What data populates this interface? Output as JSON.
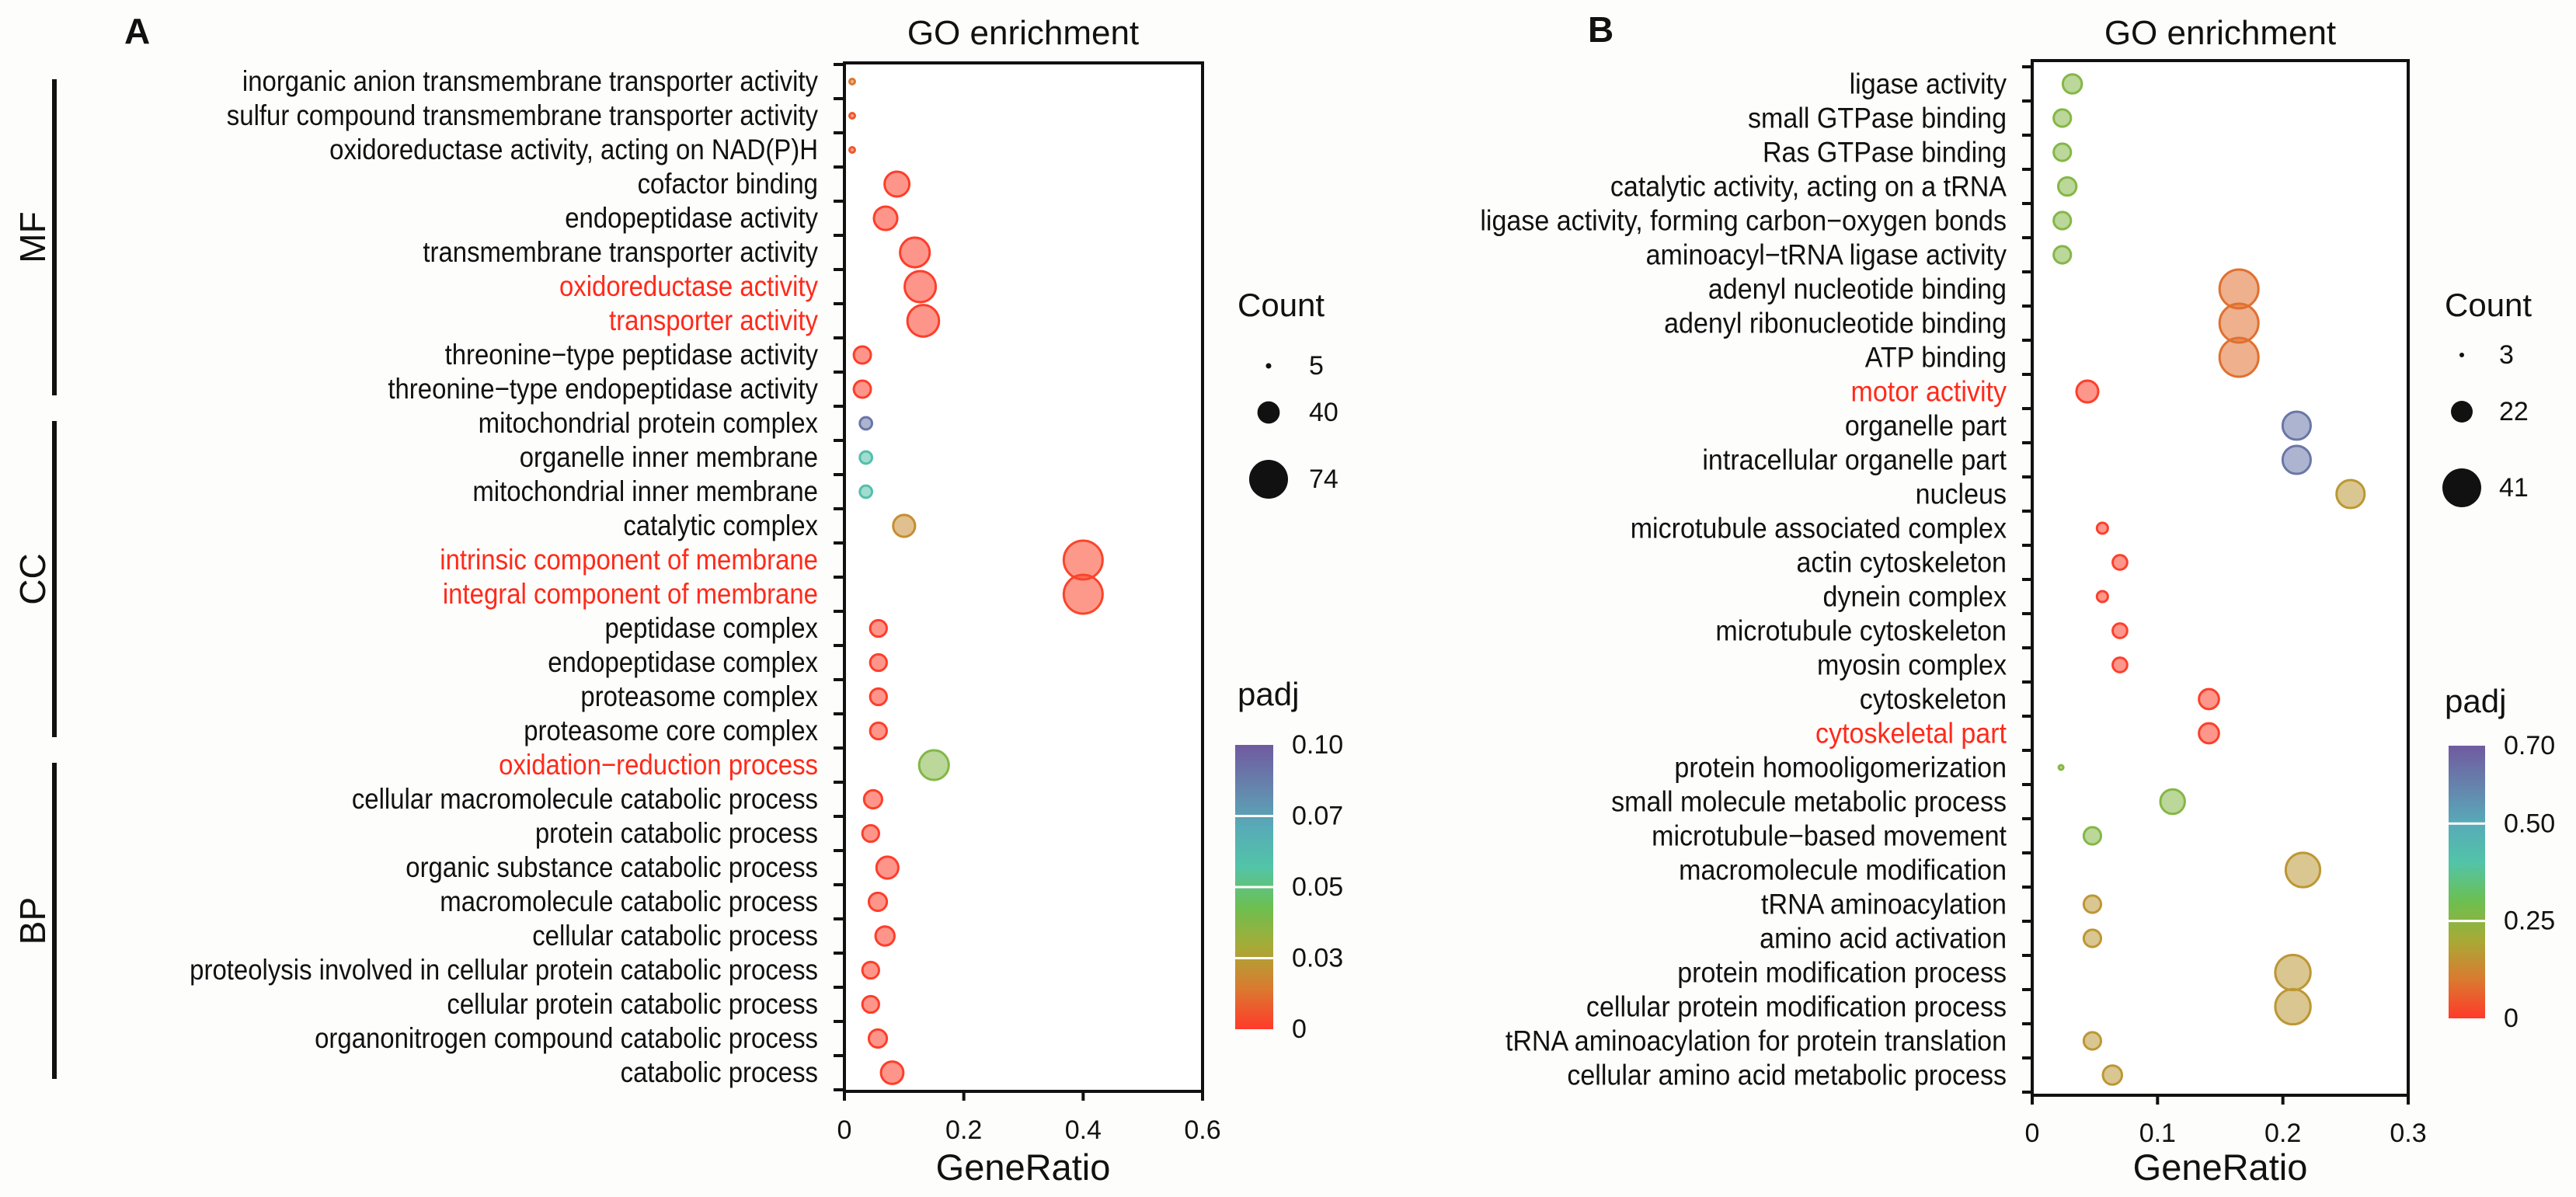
{
  "colormap": [
    "#ff3a2a",
    "#da7a30",
    "#a8aa36",
    "#6cbf50",
    "#52c4a8",
    "#58aab8",
    "#6682ac",
    "#705aa0"
  ],
  "highlight_color": "#ff2a1a",
  "chart_data": [
    {
      "type": "scatter",
      "panel": "A",
      "title": "GO enrichment",
      "xlabel": "GeneRatio",
      "ylabel": "",
      "xlim": [
        0,
        0.6
      ],
      "xticks": [
        "0",
        "0.2",
        "0.4",
        "0.6"
      ],
      "xtick_values": [
        0,
        0.2,
        0.4,
        0.6
      ],
      "grid": false,
      "size_legend": {
        "title": "Count",
        "values": [
          "5",
          "40",
          "74"
        ],
        "numbers": [
          5,
          40,
          74
        ],
        "placement": "right"
      },
      "color_legend": {
        "title": "padj",
        "ticks": [
          "0",
          "0.03",
          "0.05",
          "0.07",
          "0.10"
        ],
        "tick_values": [
          0,
          0.03,
          0.05,
          0.07,
          0.1
        ],
        "placement": "right"
      },
      "groups": [
        {
          "label": "MF",
          "from": 0,
          "to": 9
        },
        {
          "label": "CC",
          "from": 10,
          "to": 19
        },
        {
          "label": "BP",
          "from": 20,
          "to": 29
        }
      ],
      "terms": [
        {
          "term": "inorganic anion transmembrane transporter activity",
          "gene_ratio": 0.013,
          "count": 5,
          "padj": 0.017,
          "highlight": false
        },
        {
          "term": "sulfur compound transmembrane transporter activity",
          "gene_ratio": 0.013,
          "count": 5,
          "padj": 0.008,
          "highlight": false
        },
        {
          "term": "oxidoreductase activity, acting on NAD(P)H",
          "gene_ratio": 0.013,
          "count": 5,
          "padj": 0.008,
          "highlight": false
        },
        {
          "term": "cofactor binding",
          "gene_ratio": 0.088,
          "count": 45,
          "padj": 0.001,
          "highlight": false
        },
        {
          "term": "endopeptidase activity",
          "gene_ratio": 0.069,
          "count": 42,
          "padj": 0.001,
          "highlight": false
        },
        {
          "term": "transmembrane transporter activity",
          "gene_ratio": 0.118,
          "count": 55,
          "padj": 0.001,
          "highlight": false
        },
        {
          "term": "oxidoreductase activity",
          "gene_ratio": 0.127,
          "count": 58,
          "padj": 0.001,
          "highlight": true
        },
        {
          "term": "transporter activity",
          "gene_ratio": 0.132,
          "count": 59,
          "padj": 0.001,
          "highlight": true
        },
        {
          "term": "threonine−type peptidase activity",
          "gene_ratio": 0.03,
          "count": 29,
          "padj": 0.001,
          "highlight": false
        },
        {
          "term": "threonine−type endopeptidase activity",
          "gene_ratio": 0.03,
          "count": 29,
          "padj": 0.001,
          "highlight": false
        },
        {
          "term": "mitochondrial protein complex",
          "gene_ratio": 0.036,
          "count": 19,
          "padj": 0.088,
          "highlight": false
        },
        {
          "term": "organelle inner membrane",
          "gene_ratio": 0.036,
          "count": 19,
          "padj": 0.058,
          "highlight": false
        },
        {
          "term": "mitochondrial inner membrane",
          "gene_ratio": 0.036,
          "count": 19,
          "padj": 0.058,
          "highlight": false
        },
        {
          "term": "catalytic complex",
          "gene_ratio": 0.1,
          "count": 39,
          "padj": 0.024,
          "highlight": false
        },
        {
          "term": "intrinsic component of membrane",
          "gene_ratio": 0.4,
          "count": 74,
          "padj": 0.003,
          "highlight": true
        },
        {
          "term": "integral component of membrane",
          "gene_ratio": 0.4,
          "count": 74,
          "padj": 0.003,
          "highlight": true
        },
        {
          "term": "peptidase complex",
          "gene_ratio": 0.057,
          "count": 28,
          "padj": 0.001,
          "highlight": false
        },
        {
          "term": "endopeptidase complex",
          "gene_ratio": 0.057,
          "count": 28,
          "padj": 0.001,
          "highlight": false
        },
        {
          "term": "proteasome complex",
          "gene_ratio": 0.057,
          "count": 28,
          "padj": 0.001,
          "highlight": false
        },
        {
          "term": "proteasome core complex",
          "gene_ratio": 0.057,
          "count": 28,
          "padj": 0.001,
          "highlight": false
        },
        {
          "term": "oxidation−reduction process",
          "gene_ratio": 0.15,
          "count": 55,
          "padj": 0.04,
          "highlight": true
        },
        {
          "term": "cellular macromolecule catabolic process",
          "gene_ratio": 0.048,
          "count": 31,
          "padj": 0.001,
          "highlight": false
        },
        {
          "term": "protein catabolic process",
          "gene_ratio": 0.044,
          "count": 28,
          "padj": 0.001,
          "highlight": false
        },
        {
          "term": "organic substance catabolic process",
          "gene_ratio": 0.072,
          "count": 39,
          "padj": 0.001,
          "highlight": false
        },
        {
          "term": "macromolecule catabolic process",
          "gene_ratio": 0.056,
          "count": 31,
          "padj": 0.001,
          "highlight": false
        },
        {
          "term": "cellular catabolic process",
          "gene_ratio": 0.068,
          "count": 33,
          "padj": 0.001,
          "highlight": false
        },
        {
          "term": "proteolysis involved in cellular protein catabolic process",
          "gene_ratio": 0.044,
          "count": 28,
          "padj": 0.001,
          "highlight": false
        },
        {
          "term": "cellular protein catabolic process",
          "gene_ratio": 0.044,
          "count": 28,
          "padj": 0.001,
          "highlight": false
        },
        {
          "term": "organonitrogen compound catabolic process",
          "gene_ratio": 0.056,
          "count": 31,
          "padj": 0.001,
          "highlight": false
        },
        {
          "term": "catabolic process",
          "gene_ratio": 0.08,
          "count": 40,
          "padj": 0.001,
          "highlight": false
        }
      ]
    },
    {
      "type": "scatter",
      "panel": "B",
      "title": "GO enrichment",
      "xlabel": "GeneRatio",
      "ylabel": "",
      "xlim": [
        0,
        0.3
      ],
      "xticks": [
        "0",
        "0.1",
        "0.2",
        "0.3"
      ],
      "xtick_values": [
        0,
        0.1,
        0.2,
        0.3
      ],
      "grid": false,
      "size_legend": {
        "title": "Count",
        "values": [
          "3",
          "22",
          "41"
        ],
        "numbers": [
          3,
          22,
          41
        ],
        "placement": "right"
      },
      "color_legend": {
        "title": "padj",
        "ticks": [
          "0",
          "0.25",
          "0.50",
          "0.70"
        ],
        "tick_values": [
          0,
          0.25,
          0.5,
          0.7
        ],
        "placement": "right"
      },
      "groups": [],
      "terms": [
        {
          "term": "ligase activity",
          "gene_ratio": 0.032,
          "count": 19,
          "padj": 0.26,
          "highlight": false
        },
        {
          "term": "small GTPase binding",
          "gene_ratio": 0.024,
          "count": 17,
          "padj": 0.26,
          "highlight": false
        },
        {
          "term": "Ras GTPase binding",
          "gene_ratio": 0.024,
          "count": 17,
          "padj": 0.26,
          "highlight": false
        },
        {
          "term": "catalytic activity, acting on a tRNA",
          "gene_ratio": 0.028,
          "count": 18,
          "padj": 0.26,
          "highlight": false
        },
        {
          "term": "ligase activity, forming carbon−oxygen bonds",
          "gene_ratio": 0.024,
          "count": 17,
          "padj": 0.26,
          "highlight": false
        },
        {
          "term": "aminoacyl−tRNA ligase activity",
          "gene_ratio": 0.024,
          "count": 17,
          "padj": 0.26,
          "highlight": false
        },
        {
          "term": "adenyl nucleotide binding",
          "gene_ratio": 0.165,
          "count": 41,
          "padj": 0.085,
          "highlight": false
        },
        {
          "term": "adenyl ribonucleotide binding",
          "gene_ratio": 0.165,
          "count": 41,
          "padj": 0.085,
          "highlight": false
        },
        {
          "term": "ATP binding",
          "gene_ratio": 0.165,
          "count": 41,
          "padj": 0.085,
          "highlight": false
        },
        {
          "term": "motor activity",
          "gene_ratio": 0.044,
          "count": 22,
          "padj": 0.01,
          "highlight": true
        },
        {
          "term": "organelle part",
          "gene_ratio": 0.211,
          "count": 29,
          "padj": 0.63,
          "highlight": false
        },
        {
          "term": "intracellular organelle part",
          "gene_ratio": 0.211,
          "count": 29,
          "padj": 0.63,
          "highlight": false
        },
        {
          "term": "nucleus",
          "gene_ratio": 0.254,
          "count": 29,
          "padj": 0.16,
          "highlight": false
        },
        {
          "term": "microtubule associated complex",
          "gene_ratio": 0.056,
          "count": 10,
          "padj": 0.01,
          "highlight": false
        },
        {
          "term": "actin cytoskeleton",
          "gene_ratio": 0.07,
          "count": 14,
          "padj": 0.01,
          "highlight": false
        },
        {
          "term": "dynein complex",
          "gene_ratio": 0.056,
          "count": 10,
          "padj": 0.01,
          "highlight": false
        },
        {
          "term": "microtubule cytoskeleton",
          "gene_ratio": 0.07,
          "count": 14,
          "padj": 0.01,
          "highlight": false
        },
        {
          "term": "myosin complex",
          "gene_ratio": 0.07,
          "count": 14,
          "padj": 0.01,
          "highlight": false
        },
        {
          "term": "cytoskeleton",
          "gene_ratio": 0.141,
          "count": 20,
          "padj": 0.01,
          "highlight": false
        },
        {
          "term": "cytoskeletal part",
          "gene_ratio": 0.141,
          "count": 20,
          "padj": 0.01,
          "highlight": true
        },
        {
          "term": "protein homooligomerization",
          "gene_ratio": 0.023,
          "count": 3,
          "padj": 0.26,
          "highlight": false
        },
        {
          "term": "small molecule metabolic process",
          "gene_ratio": 0.112,
          "count": 25,
          "padj": 0.26,
          "highlight": false
        },
        {
          "term": "microtubule−based movement",
          "gene_ratio": 0.048,
          "count": 17,
          "padj": 0.26,
          "highlight": false
        },
        {
          "term": "macromolecule modification",
          "gene_ratio": 0.216,
          "count": 36,
          "padj": 0.16,
          "highlight": false
        },
        {
          "term": "tRNA aminoacylation",
          "gene_ratio": 0.048,
          "count": 17,
          "padj": 0.16,
          "highlight": false
        },
        {
          "term": "amino acid activation",
          "gene_ratio": 0.048,
          "count": 17,
          "padj": 0.16,
          "highlight": false
        },
        {
          "term": "protein modification process",
          "gene_ratio": 0.208,
          "count": 37,
          "padj": 0.16,
          "highlight": false
        },
        {
          "term": "cellular protein modification process",
          "gene_ratio": 0.208,
          "count": 37,
          "padj": 0.16,
          "highlight": false
        },
        {
          "term": "tRNA aminoacylation for protein translation",
          "gene_ratio": 0.048,
          "count": 17,
          "padj": 0.16,
          "highlight": false
        },
        {
          "term": "cellular amino acid metabolic process",
          "gene_ratio": 0.064,
          "count": 19,
          "padj": 0.16,
          "highlight": false
        }
      ]
    }
  ]
}
